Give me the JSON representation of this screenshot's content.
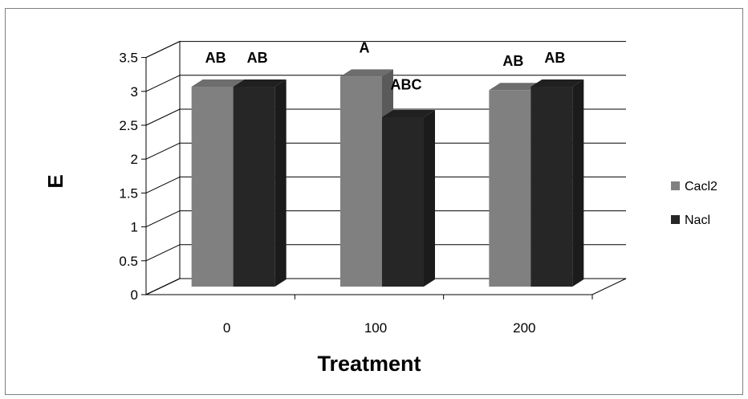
{
  "chart_data": {
    "type": "bar",
    "style": "3d-clustered-column",
    "categories": [
      "0",
      "100",
      "200"
    ],
    "series": [
      {
        "name": "Cacl2",
        "values": [
          2.95,
          3.1,
          2.9
        ],
        "color": "#808080",
        "labels": [
          "AB",
          "A",
          "AB"
        ]
      },
      {
        "name": "Nacl",
        "values": [
          2.95,
          2.5,
          2.95
        ],
        "color": "#262626",
        "labels": [
          "AB",
          "ABC",
          "AB"
        ]
      }
    ],
    "yticks": [
      "0",
      "0.5",
      "1",
      "1.5",
      "2",
      "2.5",
      "3",
      "3.5"
    ],
    "ylim": [
      0,
      3.5
    ],
    "xlabel": "Treatment",
    "ylabel": "E",
    "title": "",
    "grid": true,
    "legend_position": "right"
  }
}
